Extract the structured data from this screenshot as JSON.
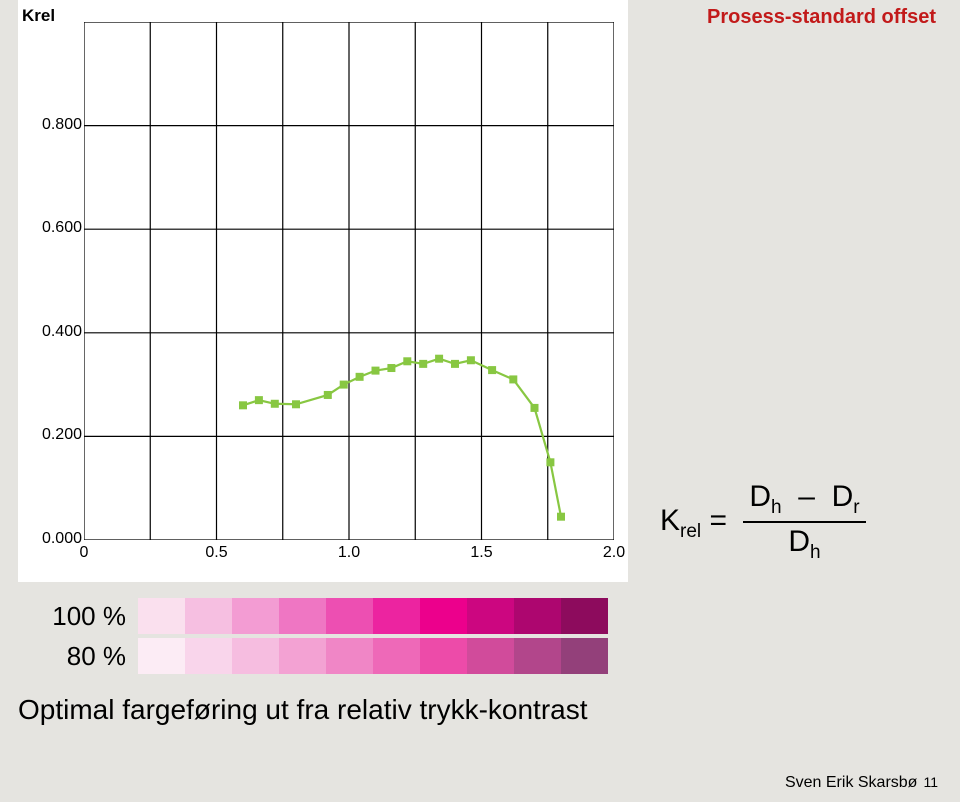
{
  "header": {
    "title": "Prosess-standard offset",
    "title_color": "#c21a1a"
  },
  "chart": {
    "type": "line",
    "y_title": "Krel",
    "background": "#ffffff",
    "grid_color": "#000000",
    "axis_fontsize": 16,
    "ylim": [
      0,
      1.0
    ],
    "xlim": [
      0,
      2.0
    ],
    "y_ticks": [
      0.0,
      0.2,
      0.4,
      0.6,
      0.8
    ],
    "y_tick_labels": [
      "0.000",
      "0.200",
      "0.400",
      "0.600",
      "0.800"
    ],
    "x_ticks": [
      0,
      0.5,
      1.0,
      1.5,
      2.0
    ],
    "x_tick_labels": [
      "0",
      "0.5",
      "1.0",
      "1.5",
      "2.0"
    ],
    "x_grid": [
      0,
      0.25,
      0.5,
      0.75,
      1.0,
      1.25,
      1.5,
      1.75,
      2.0
    ],
    "y_grid": [
      0.0,
      0.2,
      0.4,
      0.6,
      0.8,
      1.0
    ],
    "series": {
      "color": "#88c742",
      "line_width": 2.2,
      "marker_size": 8,
      "points": [
        [
          0.6,
          0.26
        ],
        [
          0.66,
          0.27
        ],
        [
          0.72,
          0.263
        ],
        [
          0.8,
          0.262
        ],
        [
          0.92,
          0.28
        ],
        [
          0.98,
          0.3
        ],
        [
          1.04,
          0.315
        ],
        [
          1.1,
          0.327
        ],
        [
          1.16,
          0.332
        ],
        [
          1.22,
          0.345
        ],
        [
          1.28,
          0.34
        ],
        [
          1.34,
          0.35
        ],
        [
          1.4,
          0.34
        ],
        [
          1.46,
          0.347
        ],
        [
          1.54,
          0.328
        ],
        [
          1.62,
          0.31
        ],
        [
          1.7,
          0.255
        ],
        [
          1.76,
          0.15
        ],
        [
          1.8,
          0.045
        ]
      ]
    }
  },
  "formula": {
    "lhs": "K",
    "lhs_sub": "rel",
    "num_a": "D",
    "num_a_sub": "h",
    "num_b": "D",
    "num_b_sub": "r",
    "den": "D",
    "den_sub": "h"
  },
  "swatches": {
    "rows": [
      {
        "label": "100 %",
        "colors": [
          "#fae0ee",
          "#f6bfe1",
          "#f39cd3",
          "#ef76c3",
          "#ed4fb2",
          "#ec24a0",
          "#ec008c",
          "#cc0680",
          "#ad066f",
          "#8d0b5d"
        ]
      },
      {
        "label": "80 %",
        "colors": [
          "#fcecf5",
          "#f9d5eb",
          "#f6bde0",
          "#f3a2d3",
          "#f086c6",
          "#ee69b8",
          "#ed4ba9",
          "#d14b9b",
          "#b2468b",
          "#93407a"
        ]
      }
    ],
    "swatch_w": 47,
    "swatch_h": 36
  },
  "caption": "Optimal fargeføring ut fra relativ trykk-kontrast",
  "footer": {
    "author": "Sven Erik Skarsbø",
    "page": "11"
  }
}
